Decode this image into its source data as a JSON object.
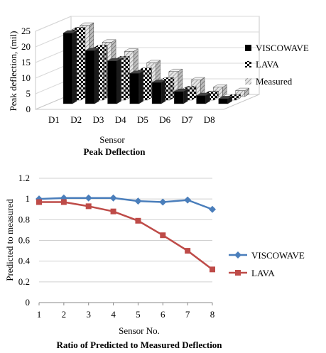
{
  "chart_data": [
    {
      "type": "bar",
      "style": "3d-clustered",
      "title": "Peak Deflection",
      "xlabel": "Sensor",
      "ylabel": "Peak deflection, (mil)",
      "ylim": [
        0,
        25
      ],
      "yticks": [
        "0",
        "5",
        "10",
        "15",
        "20",
        "25"
      ],
      "categories": [
        "D1",
        "D2",
        "D3",
        "D4",
        "D5",
        "D6",
        "D7",
        "D8"
      ],
      "legend_position": "right",
      "series": [
        {
          "name": "VISCOWAVE",
          "values": [
            22.6,
            17.0,
            13.7,
            9.7,
            6.8,
            3.9,
            2.6,
            1.6
          ],
          "pattern": "solid-black"
        },
        {
          "name": "LAVA",
          "values": [
            22.5,
            16.8,
            13.2,
            9.5,
            6.4,
            3.6,
            2.1,
            1.0
          ],
          "pattern": "checker"
        },
        {
          "name": "Measured",
          "values": [
            22.8,
            17.4,
            14.5,
            10.8,
            8.0,
            5.3,
            3.0,
            1.9
          ],
          "pattern": "hatched"
        }
      ],
      "colors": {
        "viscowave": "#000000",
        "lava": "#ffffff",
        "measured": "#bdbdbd"
      }
    },
    {
      "type": "line",
      "title": "Ratio of Predicted to Measured Deflection",
      "xlabel": "Sensor No.",
      "ylabel": "Predicted to measured",
      "xlim": [
        1,
        8
      ],
      "ylim": [
        0,
        1.2
      ],
      "xticks": [
        "1",
        "2",
        "3",
        "4",
        "5",
        "6",
        "7",
        "8"
      ],
      "yticks": [
        "0",
        "0.2",
        "0.4",
        "0.6",
        "0.8",
        "1",
        "1.2"
      ],
      "x": [
        1,
        2,
        3,
        4,
        5,
        6,
        7,
        8
      ],
      "grid": "horizontal",
      "legend_position": "right",
      "series": [
        {
          "name": "VISCOWAVE",
          "values": [
            1.0,
            1.01,
            1.01,
            1.01,
            0.98,
            0.97,
            0.99,
            0.9
          ],
          "color": "#4a7ebb",
          "marker": "diamond"
        },
        {
          "name": "LAVA",
          "values": [
            0.97,
            0.97,
            0.93,
            0.88,
            0.79,
            0.65,
            0.5,
            0.32
          ],
          "color": "#be4b48",
          "marker": "square"
        }
      ]
    }
  ]
}
